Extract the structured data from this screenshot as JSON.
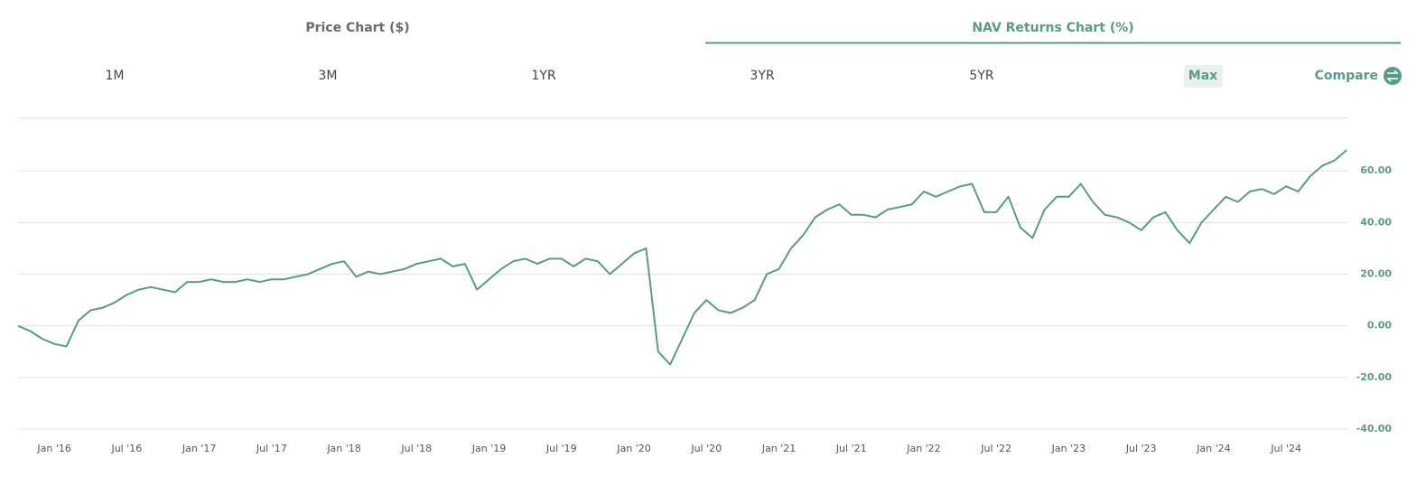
{
  "tabs": [
    "Price Chart ($)",
    "NAV Returns Chart (%)"
  ],
  "ranges": [
    "1M",
    "3M",
    "1YR",
    "3YR",
    "5YR",
    "Max"
  ],
  "compare": "Compare",
  "chart_data": {
    "type": "line",
    "x": [
      "2015-10",
      "2015-11",
      "2015-12",
      "2016-01",
      "2016-02",
      "2016-03",
      "2016-04",
      "2016-05",
      "2016-06",
      "2016-07",
      "2016-08",
      "2016-09",
      "2016-10",
      "2016-11",
      "2016-12",
      "2017-01",
      "2017-02",
      "2017-03",
      "2017-04",
      "2017-05",
      "2017-06",
      "2017-07",
      "2017-08",
      "2017-09",
      "2017-10",
      "2017-11",
      "2017-12",
      "2018-01",
      "2018-02",
      "2018-03",
      "2018-04",
      "2018-05",
      "2018-06",
      "2018-07",
      "2018-08",
      "2018-09",
      "2018-10",
      "2018-11",
      "2018-12",
      "2019-01",
      "2019-02",
      "2019-03",
      "2019-04",
      "2019-05",
      "2019-06",
      "2019-07",
      "2019-08",
      "2019-09",
      "2019-10",
      "2019-11",
      "2019-12",
      "2020-01",
      "2020-02",
      "2020-03",
      "2020-04",
      "2020-05",
      "2020-06",
      "2020-07",
      "2020-08",
      "2020-09",
      "2020-10",
      "2020-11",
      "2020-12",
      "2021-01",
      "2021-02",
      "2021-03",
      "2021-04",
      "2021-05",
      "2021-06",
      "2021-07",
      "2021-08",
      "2021-09",
      "2021-10",
      "2021-11",
      "2021-12",
      "2022-01",
      "2022-02",
      "2022-03",
      "2022-04",
      "2022-05",
      "2022-06",
      "2022-07",
      "2022-08",
      "2022-09",
      "2022-10",
      "2022-11",
      "2022-12",
      "2023-01",
      "2023-02",
      "2023-03",
      "2023-04",
      "2023-05",
      "2023-06",
      "2023-07",
      "2023-08",
      "2023-09",
      "2023-10",
      "2023-11",
      "2023-12",
      "2024-01",
      "2024-02",
      "2024-03",
      "2024-04",
      "2024-05",
      "2024-06",
      "2024-07",
      "2024-08",
      "2024-09",
      "2024-10",
      "2024-11",
      "2024-12"
    ],
    "series": [
      {
        "color": "#5a9a8b",
        "values": [
          0,
          -2,
          -5,
          -7,
          -8,
          2,
          6,
          7,
          9,
          12,
          14,
          15,
          14,
          13,
          17,
          17,
          18,
          17,
          17,
          18,
          17,
          18,
          18,
          19,
          20,
          22,
          24,
          25,
          19,
          21,
          20,
          21,
          22,
          24,
          25,
          26,
          23,
          24,
          14,
          18,
          22,
          25,
          26,
          24,
          26,
          26,
          23,
          26,
          25,
          20,
          24,
          28,
          30,
          -10,
          -15,
          -5,
          5,
          10,
          6,
          5,
          7,
          10,
          20,
          22,
          30,
          35,
          42,
          45,
          47,
          43,
          43,
          42,
          45,
          46,
          47,
          52,
          50,
          52,
          54,
          55,
          44,
          44,
          50,
          38,
          34,
          45,
          50,
          50,
          55,
          48,
          43,
          42,
          40,
          37,
          42,
          44,
          37,
          32,
          40,
          45,
          50,
          48,
          52,
          53,
          51,
          54,
          52,
          58,
          62,
          64,
          68
        ]
      }
    ],
    "xlim": [
      "2015-10",
      "2024-12"
    ],
    "xticks": [
      {
        "value": "2016-01",
        "label": "Jan '16"
      },
      {
        "value": "2016-07",
        "label": "Jul '16"
      },
      {
        "value": "2017-01",
        "label": "Jan '17"
      },
      {
        "value": "2017-07",
        "label": "Jul '17"
      },
      {
        "value": "2018-01",
        "label": "Jan '18"
      },
      {
        "value": "2018-07",
        "label": "Jul '18"
      },
      {
        "value": "2019-01",
        "label": "Jan '19"
      },
      {
        "value": "2019-07",
        "label": "Jul '19"
      },
      {
        "value": "2020-01",
        "label": "Jan '20"
      },
      {
        "value": "2020-07",
        "label": "Jul '20"
      },
      {
        "value": "2021-01",
        "label": "Jan '21"
      },
      {
        "value": "2021-07",
        "label": "Jul '21"
      },
      {
        "value": "2022-01",
        "label": "Jan '22"
      },
      {
        "value": "2022-07",
        "label": "Jul '22"
      },
      {
        "value": "2023-01",
        "label": "Jan '23"
      },
      {
        "value": "2023-07",
        "label": "Jul '23"
      },
      {
        "value": "2024-01",
        "label": "Jan '24"
      },
      {
        "value": "2024-07",
        "label": "Jul '24"
      }
    ],
    "ylim": [
      -40,
      80
    ],
    "yticks": [
      {
        "value": -40,
        "label": "-40.00"
      },
      {
        "value": -20,
        "label": "-20.00"
      },
      {
        "value": 0,
        "label": "0.00"
      },
      {
        "value": 20,
        "label": "20.00"
      },
      {
        "value": 40,
        "label": "40.00"
      },
      {
        "value": 60,
        "label": "60.00"
      }
    ],
    "grid": true
  }
}
